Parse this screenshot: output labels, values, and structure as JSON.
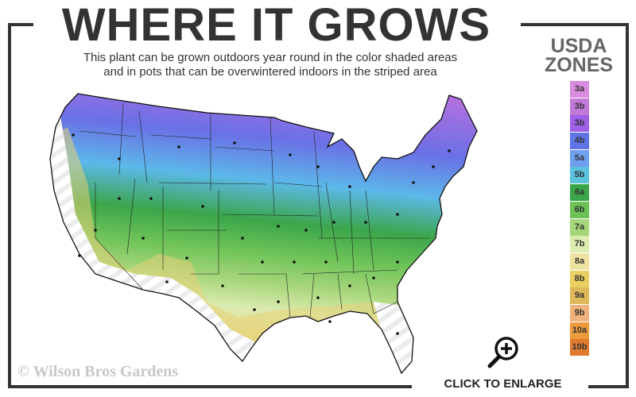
{
  "header": {
    "title": "WHERE IT GROWS",
    "subtitle_line1": "This plant can be grown outdoors year round in the color shaded areas",
    "subtitle_line2": "and in pots that can be overwintered indoors in the striped area"
  },
  "legend": {
    "title_line1": "USDA",
    "title_line2": "ZONES",
    "zones": [
      {
        "label": "3a",
        "color": "#d98be0"
      },
      {
        "label": "3b",
        "color": "#c279d8"
      },
      {
        "label": "3b",
        "color": "#a060e8"
      },
      {
        "label": "4b",
        "color": "#5f74e6"
      },
      {
        "label": "5a",
        "color": "#6fa0f0"
      },
      {
        "label": "5b",
        "color": "#5cc3de"
      },
      {
        "label": "6a",
        "color": "#3ba64a"
      },
      {
        "label": "6b",
        "color": "#6cc257"
      },
      {
        "label": "7a",
        "color": "#a6d67a"
      },
      {
        "label": "7b",
        "color": "#dcebb0"
      },
      {
        "label": "8a",
        "color": "#ede3a0"
      },
      {
        "label": "8b",
        "color": "#e9cf60"
      },
      {
        "label": "9a",
        "color": "#dfb85a"
      },
      {
        "label": "9b",
        "color": "#f0b27c"
      },
      {
        "label": "10a",
        "color": "#ec9a3c"
      },
      {
        "label": "10b",
        "color": "#e07a2e"
      }
    ]
  },
  "map": {
    "region": "United States",
    "frame_color": "#333333"
  },
  "footer": {
    "copyright": "© Wilson Bros Gardens",
    "enlarge_label": "CLICK TO ENLARGE",
    "enlarge_icon": "magnifier-plus-icon"
  }
}
